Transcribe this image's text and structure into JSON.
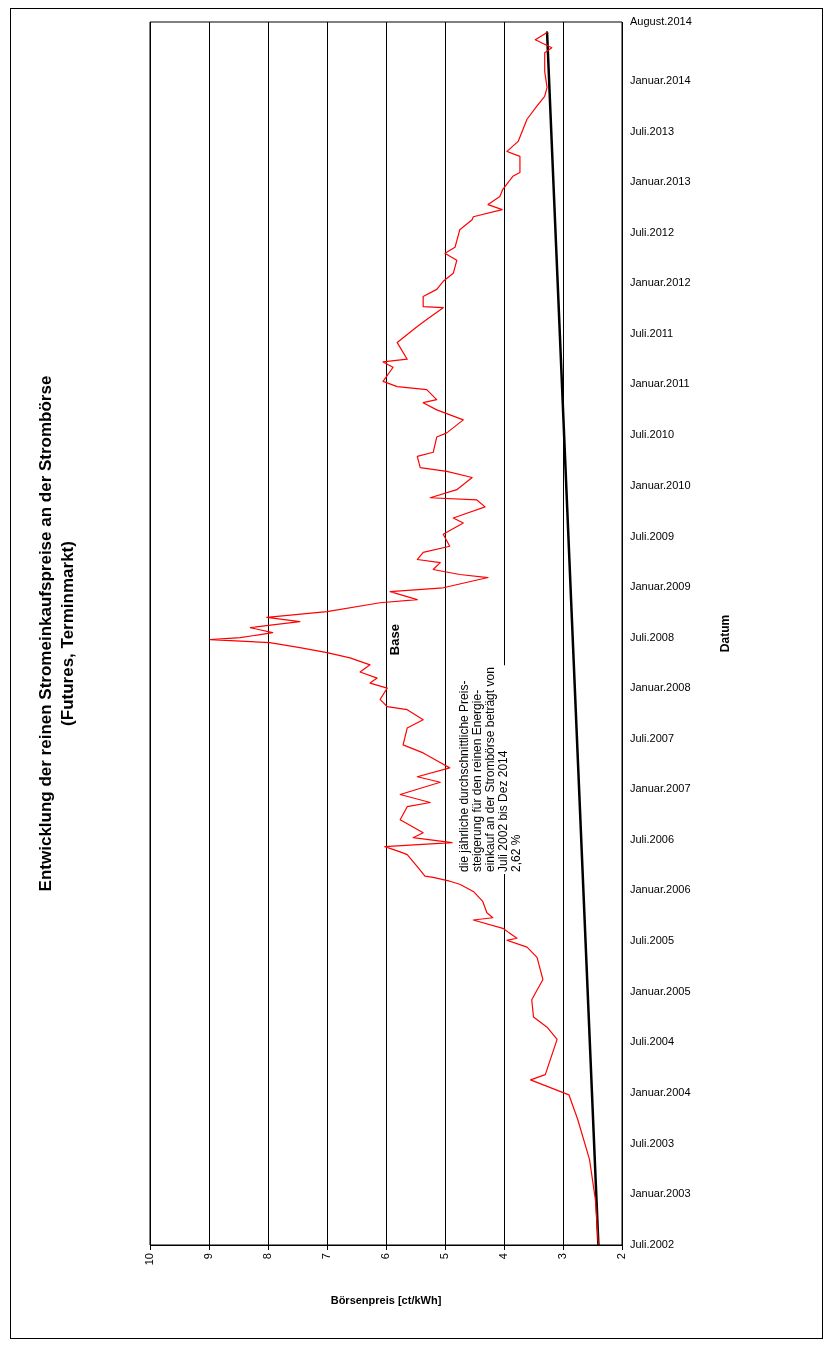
{
  "chart_data": {
    "type": "line",
    "orientation": "horizontal",
    "title": "Entwicklung der reinen Stromeinkaufspreise an der Strombörse\n(Futures, Terminmarkt)",
    "xlabel": "Börsenpreis [ct/kWh]",
    "ylabel": "Datum",
    "annotations": [
      "die jährliche durchschnittliche Preis-\nsteigerung für den reinen Energie-\neinkauf an der Strombörse beträgt von\nJuli 2002 bis Dez 2014\n2,62 %"
    ],
    "xlim": [
      10,
      2
    ],
    "xticks": [
      10,
      9,
      8,
      7,
      6,
      5,
      4,
      3,
      2
    ],
    "ylim": [
      "2002-07-01",
      "2014-08-01"
    ],
    "yticks": [
      {
        "value": "2002-07-01",
        "label": "Juli.2002"
      },
      {
        "value": "2003-01-01",
        "label": "Januar.2003"
      },
      {
        "value": "2003-07-01",
        "label": "Juli.2003"
      },
      {
        "value": "2004-01-01",
        "label": "Januar.2004"
      },
      {
        "value": "2004-07-01",
        "label": "Juli.2004"
      },
      {
        "value": "2005-01-01",
        "label": "Januar.2005"
      },
      {
        "value": "2005-07-01",
        "label": "Juli.2005"
      },
      {
        "value": "2006-01-01",
        "label": "Januar.2006"
      },
      {
        "value": "2006-07-01",
        "label": "Juli.2006"
      },
      {
        "value": "2007-01-01",
        "label": "Januar.2007"
      },
      {
        "value": "2007-07-01",
        "label": "Juli.2007"
      },
      {
        "value": "2008-01-01",
        "label": "Januar.2008"
      },
      {
        "value": "2008-07-01",
        "label": "Juli.2008"
      },
      {
        "value": "2009-01-01",
        "label": "Januar.2009"
      },
      {
        "value": "2009-07-01",
        "label": "Juli.2009"
      },
      {
        "value": "2010-01-01",
        "label": "Januar.2010"
      },
      {
        "value": "2010-07-01",
        "label": "Juli.2010"
      },
      {
        "value": "2011-01-01",
        "label": "Januar.2011"
      },
      {
        "value": "2011-07-01",
        "label": "Juli.2011"
      },
      {
        "value": "2012-01-01",
        "label": "Januar.2012"
      },
      {
        "value": "2012-07-01",
        "label": "Juli.2012"
      },
      {
        "value": "2013-01-01",
        "label": "Januar.2013"
      },
      {
        "value": "2013-07-01",
        "label": "Juli.2013"
      },
      {
        "value": "2014-01-01",
        "label": "Januar.2014"
      },
      {
        "value": "2014-08-01",
        "label": "August.2014"
      }
    ],
    "grid": "x",
    "marker": "none",
    "line_style": "solid",
    "series": [
      {
        "name": "Base",
        "color": "#ff0000",
        "values": [
          2.4,
          2.45,
          2.55,
          2.75,
          2.9,
          3.55,
          3.3,
          3.1,
          3.27,
          3.5,
          3.53,
          3.34,
          3.44,
          3.61,
          3.95,
          3.78,
          4.02,
          4.52,
          4.19,
          4.29,
          4.36,
          4.52,
          4.75,
          4.92,
          5.2,
          5.34,
          5.47,
          5.64,
          5.76,
          6.02,
          4.88,
          5.54,
          5.37,
          5.76,
          5.64,
          5.25,
          5.76,
          5.08,
          5.47,
          4.92,
          5.37,
          5.71,
          5.64,
          5.37,
          5.64,
          5.98,
          6.1,
          5.98,
          6.27,
          6.15,
          6.44,
          6.27,
          6.61,
          7.0,
          7.46,
          7.97,
          8.98,
          8.47,
          7.92,
          8.3,
          7.46,
          8.02,
          7.0,
          6.1,
          5.47,
          5.93,
          5.03,
          4.27,
          4.75,
          5.2,
          5.08,
          5.47,
          5.37,
          4.92,
          5.03,
          4.69,
          4.86,
          4.32,
          4.46,
          5.25,
          4.8,
          4.54,
          4.97,
          5.42,
          5.47,
          5.2,
          5.14,
          4.97,
          4.69,
          5.14,
          5.37,
          5.14,
          5.31,
          5.81,
          6.05,
          5.88,
          6.05,
          5.64,
          5.81,
          5.64,
          5.47,
          5.31,
          5.03,
          5.37,
          5.37,
          5.14,
          5.03,
          4.86,
          4.8,
          5.0,
          4.83,
          4.75,
          4.54,
          4.52,
          4.03,
          4.27,
          4.07,
          4.02,
          3.85,
          3.73,
          3.73,
          3.95,
          3.76,
          3.61,
          3.44,
          3.31,
          3.27,
          3.31,
          3.31,
          3.19,
          3.47,
          3.27
        ],
        "x": [
          "2002-07-01",
          "2002-12-10",
          "2003-05-05",
          "2003-09-27",
          "2003-12-25",
          "2004-02-17",
          "2004-03-07",
          "2004-07-12",
          "2004-08-25",
          "2004-10-01",
          "2004-12-02",
          "2005-02-13",
          "2005-05-04",
          "2005-06-10",
          "2005-07-05",
          "2005-07-12",
          "2005-08-17",
          "2005-09-16",
          "2005-09-24",
          "2005-10-12",
          "2005-11-22",
          "2005-12-28",
          "2006-01-23",
          "2006-02-03",
          "2006-02-17",
          "2006-02-21",
          "2006-03-28",
          "2006-05-10",
          "2006-05-20",
          "2006-06-08",
          "2006-06-22",
          "2006-07-10",
          "2006-07-28",
          "2006-09-13",
          "2006-10-30",
          "2006-11-14",
          "2006-12-13",
          "2007-01-26",
          "2007-02-15",
          "2007-03-19",
          "2007-05-12",
          "2007-06-10",
          "2007-08-10",
          "2007-09-09",
          "2007-10-15",
          "2007-10-26",
          "2007-11-21",
          "2008-01-01",
          "2008-01-19",
          "2008-02-06",
          "2008-02-28",
          "2008-03-25",
          "2008-04-19",
          "2008-05-08",
          "2008-05-26",
          "2008-06-13",
          "2008-06-24",
          "2008-07-01",
          "2008-07-19",
          "2008-08-06",
          "2008-08-28",
          "2008-09-12",
          "2008-10-03",
          "2008-11-04",
          "2008-11-15",
          "2008-12-14",
          "2008-12-28",
          "2009-02-03",
          "2009-02-14",
          "2009-03-04",
          "2009-03-29",
          "2009-04-09",
          "2009-05-05",
          "2009-05-27",
          "2009-07-09",
          "2009-08-19",
          "2009-09-06",
          "2009-10-16",
          "2009-11-10",
          "2009-11-18",
          "2009-12-17",
          "2010-01-30",
          "2010-02-21",
          "2010-03-07",
          "2010-04-16",
          "2010-05-01",
          "2010-06-25",
          "2010-07-10",
          "2010-08-26",
          "2010-10-01",
          "2010-10-27",
          "2010-11-07",
          "2010-12-13",
          "2010-12-24",
          "2011-01-12",
          "2011-03-04",
          "2011-03-23",
          "2011-04-02",
          "2011-06-01",
          "2011-06-30",
          "2011-07-29",
          "2011-08-23",
          "2011-10-05",
          "2011-10-09",
          "2011-11-14",
          "2011-12-10",
          "2012-01-08",
          "2012-02-06",
          "2012-03-24",
          "2012-04-18",
          "2012-05-10",
          "2012-07-12",
          "2012-08-17",
          "2012-08-28",
          "2012-09-23",
          "2012-10-11",
          "2012-11-09",
          "2012-12-05",
          "2013-01-21",
          "2013-02-04",
          "2013-04-03",
          "2013-04-21",
          "2013-05-27",
          "2013-08-15",
          "2013-10-02",
          "2013-11-06",
          "2013-12-08",
          "2014-02-03",
          "2014-04-12",
          "2014-04-30",
          "2014-05-29",
          "2014-06-24"
        ]
      },
      {
        "color": "#000000",
        "values": [
          2.4,
          3.27
        ],
        "x": [
          "2002-07-01",
          "2014-06-24"
        ]
      }
    ]
  }
}
